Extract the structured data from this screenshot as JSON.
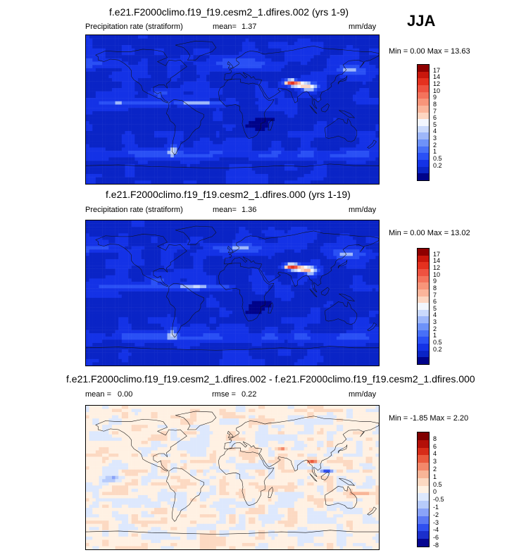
{
  "season": "JJA",
  "colors": {
    "coast": "#111111",
    "abs_scale": [
      "#00038a",
      "#0a24c6",
      "#1432e6",
      "#2a50f5",
      "#4870f7",
      "#6e92f8",
      "#9eb7fa",
      "#cad9fc",
      "#f2f6fe",
      "#fdd6c2",
      "#fbb59b",
      "#f8957a",
      "#f4735c",
      "#ee5240",
      "#e4311f",
      "#c9170c",
      "#8e0000"
    ],
    "diff_scale": [
      "#060690",
      "#1b2fcc",
      "#2f4ff0",
      "#5b78f4",
      "#8aa3f8",
      "#b7cbfb",
      "#dde8fd",
      "#fff1e3",
      "#fcd9c2",
      "#f8b597",
      "#f3886a",
      "#ea5a3d",
      "#d72c18",
      "#b40f08",
      "#800000"
    ]
  },
  "chart_data": [
    {
      "type": "heatmap",
      "title": "f.e21.F2000climo.f19_f19.cesm2_1.dfires.002 (yrs 1-9)",
      "variable": "Precipitation rate (stratiform)",
      "mean_label": "mean=",
      "mean": "1.37",
      "units": "mm/day",
      "minmax": "Min =  0.00 Max = 13.63",
      "levels": [
        "17",
        "14",
        "12",
        "10",
        "9",
        "8",
        "7",
        "6",
        "5",
        "4",
        "3",
        "2",
        "1",
        "0.5",
        "0.2"
      ]
    },
    {
      "type": "heatmap",
      "title": "f.e21.F2000climo.f19_f19.cesm2_1.dfires.000 (yrs 1-19)",
      "variable": "Precipitation rate (stratiform)",
      "mean_label": "mean=",
      "mean": "1.36",
      "units": "mm/day",
      "minmax": "Min =  0.00 Max = 13.02",
      "levels": [
        "17",
        "14",
        "12",
        "10",
        "9",
        "8",
        "7",
        "6",
        "5",
        "4",
        "3",
        "2",
        "1",
        "0.5",
        "0.2"
      ]
    },
    {
      "type": "heatmap",
      "title": "f.e21.F2000climo.f19_f19.cesm2_1.dfires.002 - f.e21.F2000climo.f19_f19.cesm2_1.dfires.000",
      "mean_label": "mean =",
      "mean": "0.00",
      "rmse_label": "rmse =",
      "rmse": "0.22",
      "units": "mm/day",
      "minmax": "Min = -1.85 Max =  2.20",
      "levels": [
        "8",
        "6",
        "4",
        "3",
        "2",
        "1",
        "0.5",
        "0",
        "-0.5",
        "-1",
        "-2",
        "-3",
        "-4",
        "-6",
        "-8"
      ]
    }
  ]
}
